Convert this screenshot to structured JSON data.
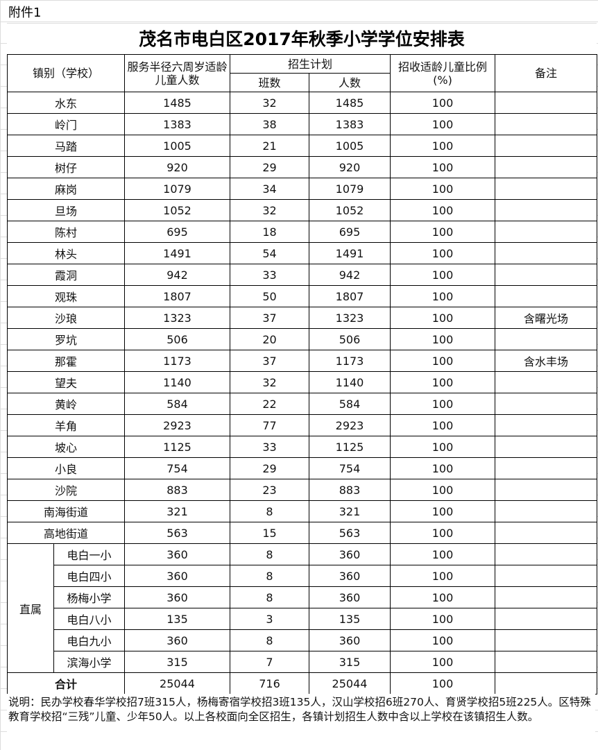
{
  "attachment": "附件1",
  "title": "茂名市电白区2017年秋季小学学位安排表",
  "headers": {
    "town": "镇别（学校）",
    "children": "服务半径六周岁适龄儿童人数",
    "plan": "招生计划",
    "classes": "班数",
    "people": "人数",
    "ratio": "招收适龄儿童比例(%)",
    "remark": "备注"
  },
  "rows": [
    [
      "水东",
      "1485",
      "32",
      "1485",
      "100",
      ""
    ],
    [
      "岭门",
      "1383",
      "38",
      "1383",
      "100",
      ""
    ],
    [
      "马踏",
      "1005",
      "21",
      "1005",
      "100",
      ""
    ],
    [
      "树仔",
      "920",
      "29",
      "920",
      "100",
      ""
    ],
    [
      "麻岗",
      "1079",
      "34",
      "1079",
      "100",
      ""
    ],
    [
      "旦场",
      "1052",
      "32",
      "1052",
      "100",
      ""
    ],
    [
      "陈村",
      "695",
      "18",
      "695",
      "100",
      ""
    ],
    [
      "林头",
      "1491",
      "54",
      "1491",
      "100",
      ""
    ],
    [
      "霞洞",
      "942",
      "33",
      "942",
      "100",
      ""
    ],
    [
      "观珠",
      "1807",
      "50",
      "1807",
      "100",
      ""
    ],
    [
      "沙琅",
      "1323",
      "37",
      "1323",
      "100",
      "含曙光场"
    ],
    [
      "罗坑",
      "506",
      "20",
      "506",
      "100",
      ""
    ],
    [
      "那霍",
      "1173",
      "37",
      "1173",
      "100",
      "含水丰场"
    ],
    [
      "望夫",
      "1140",
      "32",
      "1140",
      "100",
      ""
    ],
    [
      "黄岭",
      "584",
      "22",
      "584",
      "100",
      ""
    ],
    [
      "羊角",
      "2923",
      "77",
      "2923",
      "100",
      ""
    ],
    [
      "坡心",
      "1125",
      "33",
      "1125",
      "100",
      ""
    ],
    [
      "小良",
      "754",
      "29",
      "754",
      "100",
      ""
    ],
    [
      "沙院",
      "883",
      "23",
      "883",
      "100",
      ""
    ],
    [
      "南海街道",
      "321",
      "8",
      "321",
      "100",
      ""
    ],
    [
      "高地街道",
      "563",
      "15",
      "563",
      "100",
      ""
    ]
  ],
  "direct_label": "直属",
  "direct_rows": [
    [
      "电白一小",
      "360",
      "8",
      "360",
      "100",
      ""
    ],
    [
      "电白四小",
      "360",
      "8",
      "360",
      "100",
      ""
    ],
    [
      "杨梅小学",
      "360",
      "8",
      "360",
      "100",
      ""
    ],
    [
      "电白八小",
      "135",
      "3",
      "135",
      "100",
      ""
    ],
    [
      "电白九小",
      "360",
      "8",
      "360",
      "100",
      ""
    ],
    [
      "滨海小学",
      "315",
      "7",
      "315",
      "100",
      ""
    ]
  ],
  "total": [
    "合计",
    "25044",
    "716",
    "25044",
    "100",
    ""
  ],
  "note": "说明：民办学校春华学校招7班315人，杨梅寄宿学校招3班135人，汉山学校招6班270人、育贤学校招5班225人。区特殊教育学校招“三残”儿童、少年50人。以上各校面向全区招生，各镇计划招生人数中含以上学校在该镇招生人数。"
}
